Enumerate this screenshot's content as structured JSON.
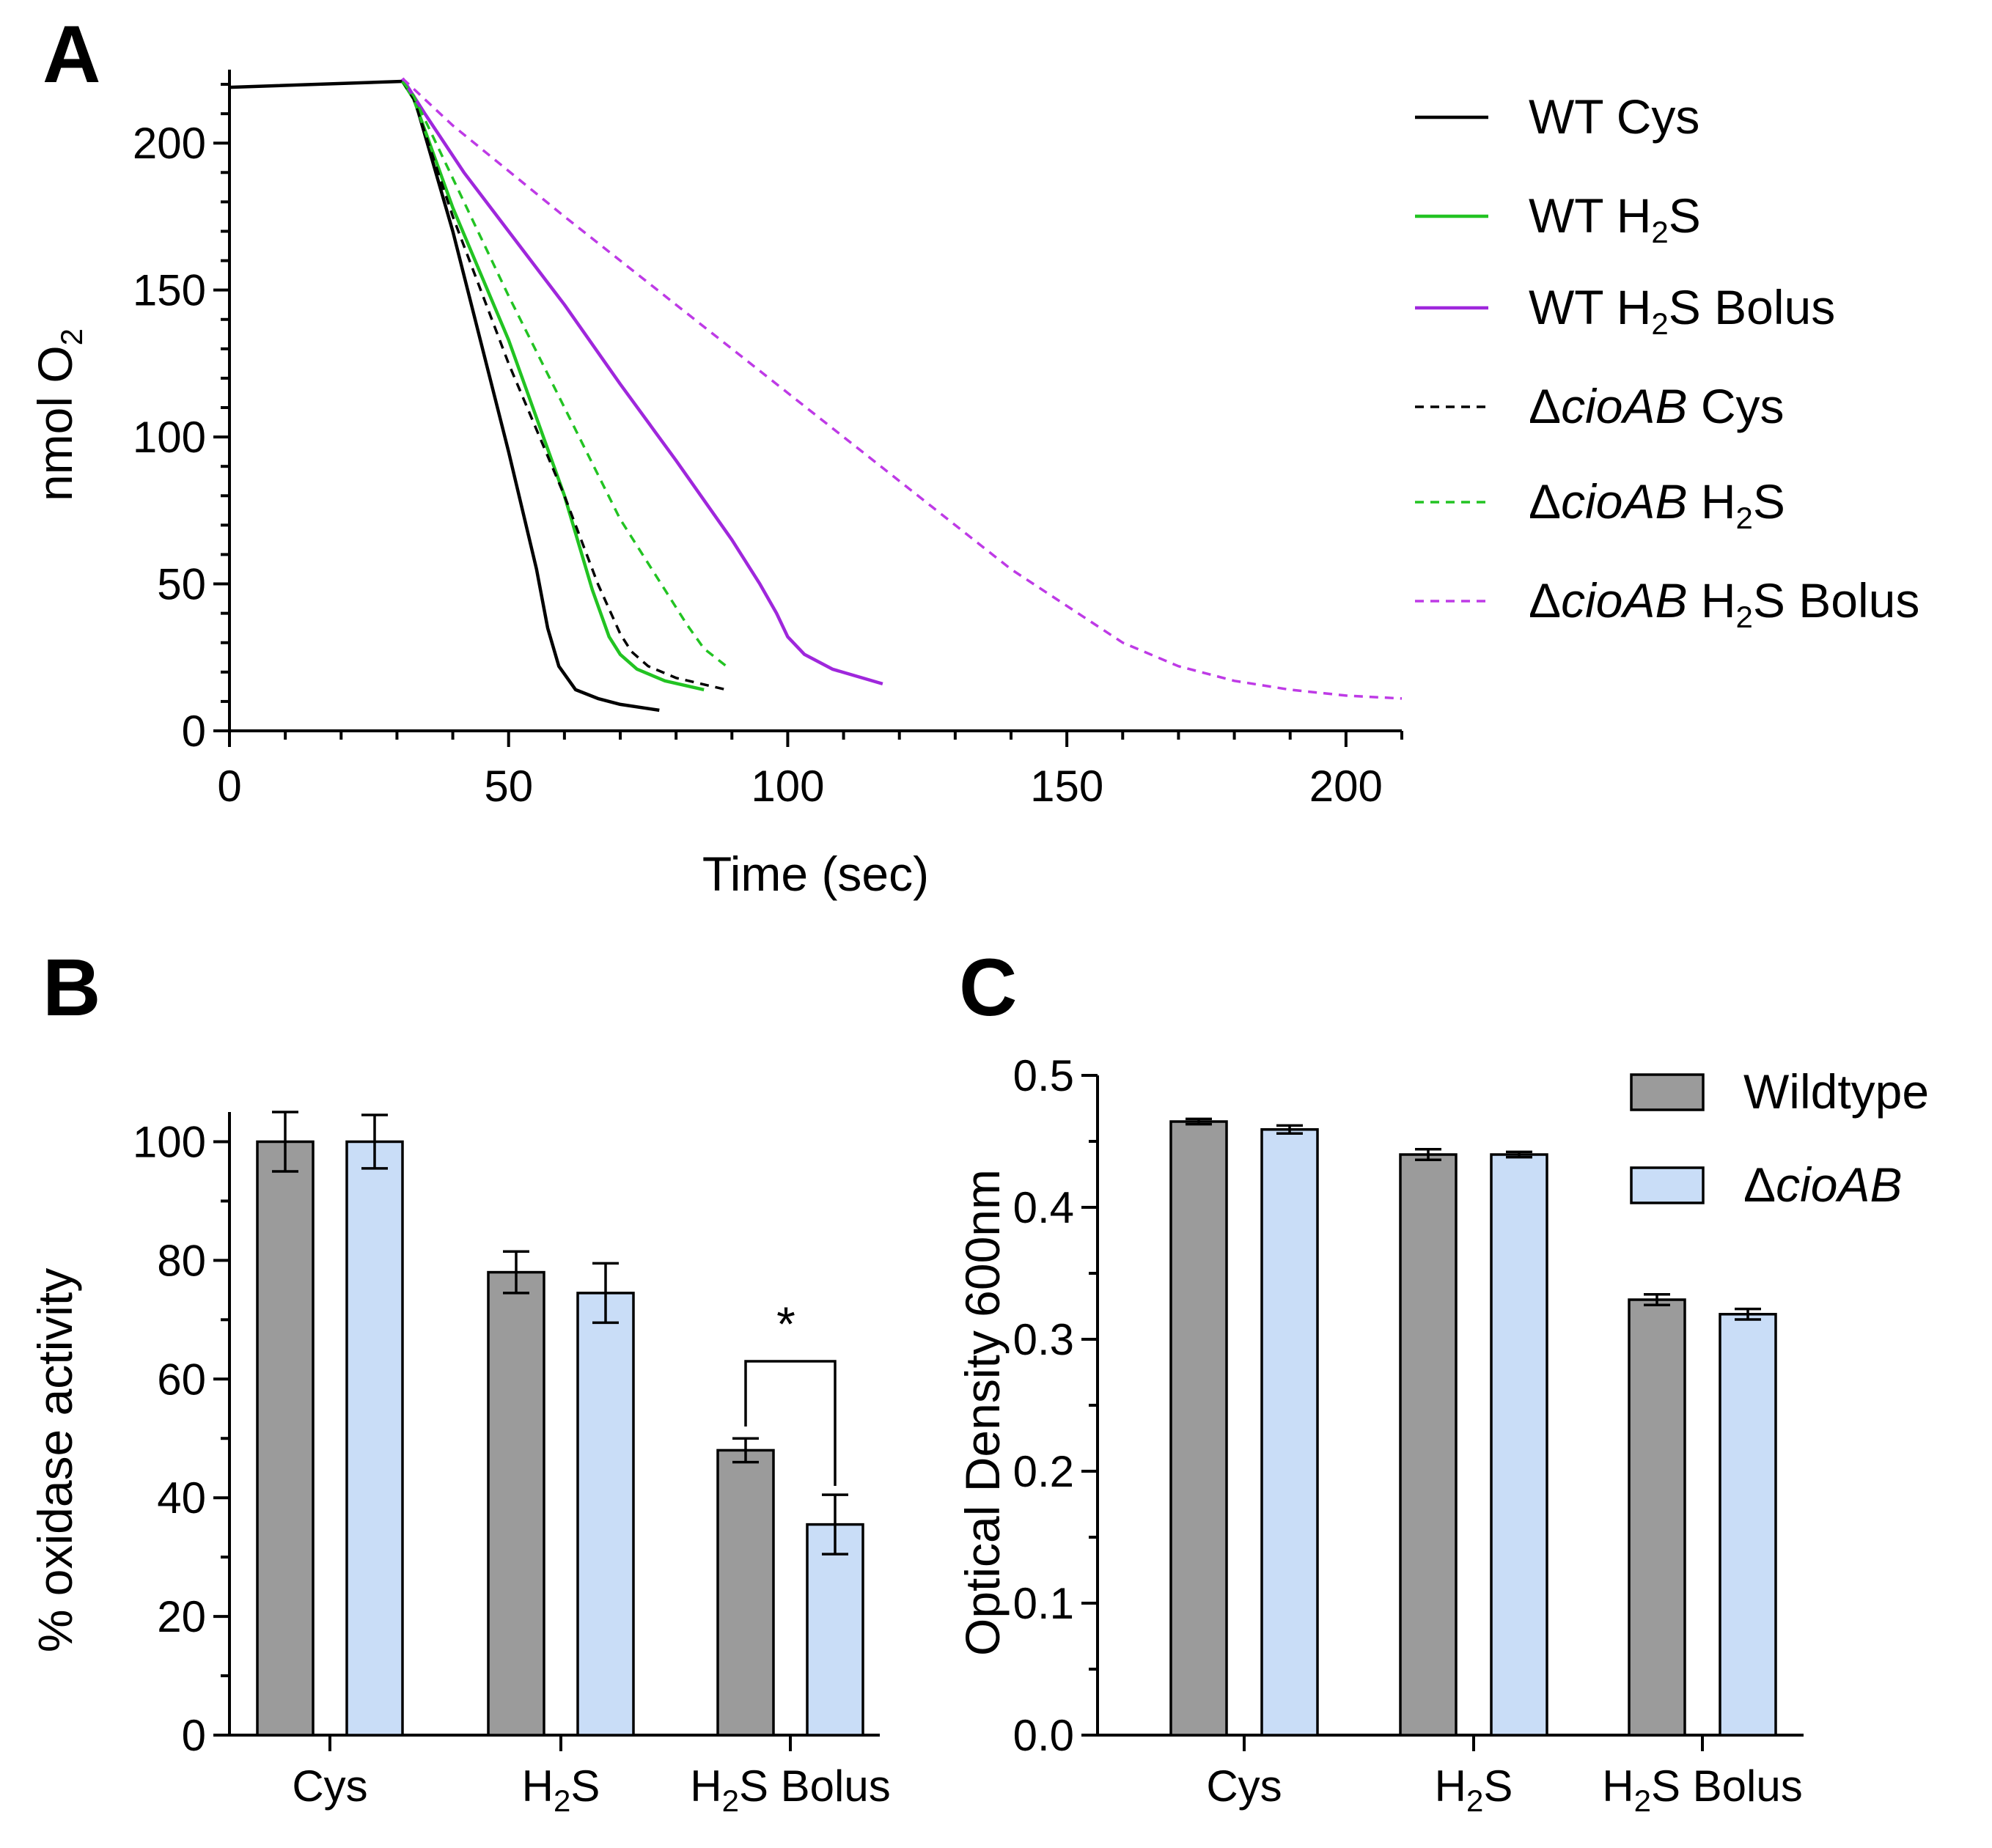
{
  "chart_data": [
    {
      "panel": "A",
      "type": "line",
      "xlabel": "Time (sec)",
      "ylabel": "nmol O2",
      "ylabel_parts": [
        "nmol O",
        "2"
      ],
      "xlim": [
        0,
        210
      ],
      "ylim": [
        0,
        225
      ],
      "xticks": [
        0,
        50,
        100,
        150,
        200
      ],
      "yticks": [
        0,
        50,
        100,
        150,
        200
      ],
      "series": [
        {
          "name": "WT Cys",
          "label_parts": [
            "WT Cys"
          ],
          "color": "#000000",
          "dash": false,
          "x": [
            0,
            31,
            33,
            40,
            50,
            55,
            57,
            59,
            62,
            66,
            70,
            77
          ],
          "y": [
            219,
            221,
            216,
            170,
            95,
            55,
            35,
            22,
            14,
            11,
            9,
            7
          ]
        },
        {
          "name": "WT H2S",
          "label_parts": [
            "WT H",
            "2",
            "S"
          ],
          "color": "#22c322",
          "dash": false,
          "x": [
            31,
            33,
            40,
            50,
            60,
            65,
            68,
            70,
            73,
            78,
            85
          ],
          "y": [
            221,
            215,
            178,
            133,
            80,
            48,
            32,
            26,
            21,
            17,
            14
          ]
        },
        {
          "name": "WT H2S Bolus",
          "label_parts": [
            "WT H",
            "2",
            "S Bolus"
          ],
          "color": "#9f27dc",
          "dash": false,
          "x": [
            31,
            35,
            42,
            50,
            60,
            70,
            80,
            90,
            95,
            98,
            100,
            103,
            108,
            117
          ],
          "y": [
            222,
            210,
            190,
            170,
            145,
            118,
            92,
            65,
            50,
            40,
            32,
            26,
            21,
            16
          ]
        },
        {
          "name": "ΔcioAB Cys",
          "label_parts": [
            "Δ",
            "cioAB",
            " Cys"
          ],
          "color": "#000000",
          "dash": true,
          "x": [
            31,
            33,
            40,
            50,
            60,
            66,
            70,
            72,
            75,
            80,
            89
          ],
          "y": [
            221,
            215,
            175,
            125,
            80,
            50,
            33,
            27,
            22,
            18,
            14
          ]
        },
        {
          "name": "ΔcioAB H2S",
          "label_parts": [
            "Δ",
            "cioAB",
            " H",
            "2",
            "S"
          ],
          "color": "#22c322",
          "dash": true,
          "x": [
            31,
            33,
            40,
            50,
            60,
            70,
            78,
            82,
            85,
            89
          ],
          "y": [
            221,
            216,
            188,
            148,
            110,
            72,
            48,
            36,
            28,
            22
          ]
        },
        {
          "name": "ΔcioAB H2S Bolus",
          "label_parts": [
            "Δ",
            "cioAB",
            " H",
            "2",
            "S Bolus"
          ],
          "color": "#be3ae6",
          "dash": true,
          "x": [
            31,
            40,
            60,
            80,
            100,
            120,
            140,
            160,
            170,
            180,
            190,
            200,
            210
          ],
          "y": [
            222,
            206,
            175,
            145,
            115,
            85,
            55,
            30,
            22,
            17,
            14,
            12,
            11
          ]
        }
      ],
      "legend": "right"
    },
    {
      "panel": "B",
      "type": "bar",
      "ylabel": "% oxidase activity",
      "ylim": [
        0,
        105
      ],
      "yticks": [
        0,
        20,
        40,
        60,
        80,
        100
      ],
      "categories": [
        "Cys",
        "H2S",
        "H2S Bolus"
      ],
      "category_parts": [
        [
          "Cys"
        ],
        [
          "H",
          "2",
          "S"
        ],
        [
          "H",
          "2",
          "S Bolus"
        ]
      ],
      "series": [
        {
          "name": "Wildtype",
          "color": "#9b9b9b",
          "values": [
            100,
            78,
            48
          ],
          "errors": [
            5,
            3.5,
            2
          ]
        },
        {
          "name": "ΔcioAB",
          "color": "#c9ddf7",
          "values": [
            100,
            74.5,
            35.5
          ],
          "errors": [
            4.5,
            5,
            5
          ]
        }
      ],
      "annotation": {
        "text": "*",
        "category": "H2S Bolus",
        "bracket_y": 63
      }
    },
    {
      "panel": "C",
      "type": "bar",
      "ylabel": "Optical Density 600nm",
      "ylim": [
        0,
        0.5
      ],
      "yticks": [
        "0.0",
        "0.1",
        "0.2",
        "0.3",
        "0.4",
        "0.5"
      ],
      "categories": [
        "Cys",
        "H2S",
        "H2S Bolus"
      ],
      "category_parts": [
        [
          "Cys"
        ],
        [
          "H",
          "2",
          "S"
        ],
        [
          "H",
          "2",
          "S Bolus"
        ]
      ],
      "series": [
        {
          "name": "Wildtype",
          "color": "#9b9b9b",
          "values": [
            0.465,
            0.44,
            0.33
          ],
          "errors": [
            0.002,
            0.004,
            0.004
          ]
        },
        {
          "name": "ΔcioAB",
          "color": "#c9ddf7",
          "values": [
            0.459,
            0.44,
            0.319
          ],
          "errors": [
            0.003,
            0.002,
            0.004
          ]
        }
      ],
      "legend": "top-right",
      "legend_parts": [
        [
          "Wildtype"
        ],
        [
          "Δ",
          "cioAB"
        ]
      ]
    }
  ]
}
